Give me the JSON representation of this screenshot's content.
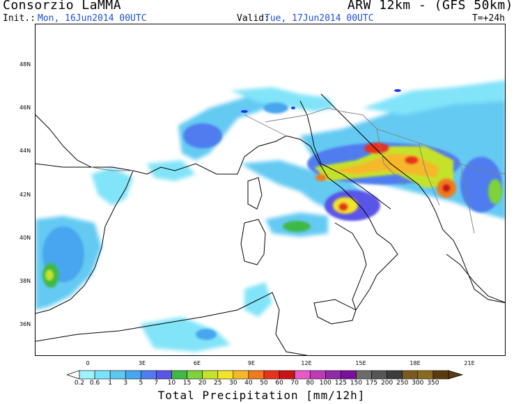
{
  "header": {
    "title_left": "Consorzio LaMMA",
    "title_right": "ARW 12km - (GFS 50km)",
    "init_label": "Init.:",
    "init_value": "Mon, 16Jun2014 00UTC",
    "valid_label": "Valid:",
    "valid_value": "Tue, 17Jun2014 00UTC",
    "forecast_step": "T=+24h"
  },
  "axes": {
    "latitude_labels": [
      "48N",
      "46N",
      "44N",
      "42N",
      "40N",
      "38N",
      "36N"
    ],
    "longitude_labels": [
      "0",
      "3E",
      "6E",
      "9E",
      "12E",
      "15E",
      "18E",
      "21E"
    ]
  },
  "legend": {
    "title": "Total Precipitation [mm/12h]",
    "tick_labels": [
      "0.2",
      "0.6",
      "1",
      "3",
      "5",
      "7",
      "10",
      "15",
      "20",
      "25",
      "30",
      "40",
      "50",
      "60",
      "70",
      "80",
      "100",
      "125",
      "150",
      "175",
      "200",
      "250",
      "300",
      "350"
    ],
    "colors": [
      "#9cf3ff",
      "#7be3f8",
      "#5cc8f2",
      "#46a6ef",
      "#4f7df0",
      "#5a55e8",
      "#3fb846",
      "#7ed23a",
      "#c5e22a",
      "#f2e42a",
      "#f4b82a",
      "#ef7b1c",
      "#e8321c",
      "#c81414",
      "#e65ac8",
      "#c03ab8",
      "#902aa8",
      "#7a0f9a",
      "#6b6b6b",
      "#555555",
      "#3c3c3c",
      "#7b5a1e",
      "#8a6a1f",
      "#5c3a10"
    ]
  },
  "map": {
    "sea_color": "#ffffff",
    "coastline_color": "#000000",
    "border_color": "#7f7f7f",
    "lake_color": "#2033ff",
    "precipitation_field": "light-blue-green bands over France, Italy, Balkans; heavy orange-red cells over Adriatic coast of Croatia/Montenegro and central Italy"
  }
}
